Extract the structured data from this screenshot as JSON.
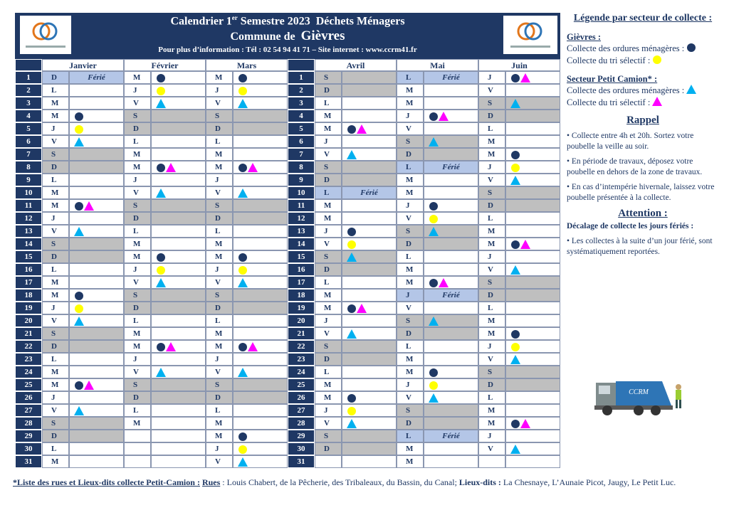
{
  "header": {
    "title_pre": "Calendrier 1",
    "title_sup": "er",
    "title_post": " Semestre 2023  Déchets Ménagers",
    "commune_label": "Commune de",
    "commune": "Gièvres",
    "info": "Pour plus d’information : Tél : 02 54 94 41 71 – Site internet : www.ccrm41.fr"
  },
  "day_numbers": [
    1,
    2,
    3,
    4,
    5,
    6,
    7,
    8,
    9,
    10,
    11,
    12,
    13,
    14,
    15,
    16,
    17,
    18,
    19,
    20,
    21,
    22,
    23,
    24,
    25,
    26,
    27,
    28,
    29,
    30,
    31
  ],
  "months": [
    {
      "name": "Janvier",
      "days": [
        {
          "d": "D",
          "f": "Férié"
        },
        {
          "d": "L"
        },
        {
          "d": "M"
        },
        {
          "d": "M",
          "i": "o"
        },
        {
          "d": "J",
          "i": "y"
        },
        {
          "d": "V",
          "i": "t"
        },
        {
          "d": "S"
        },
        {
          "d": "D"
        },
        {
          "d": "L"
        },
        {
          "d": "M"
        },
        {
          "d": "M",
          "i": "op"
        },
        {
          "d": "J"
        },
        {
          "d": "V",
          "i": "t"
        },
        {
          "d": "S"
        },
        {
          "d": "D"
        },
        {
          "d": "L"
        },
        {
          "d": "M"
        },
        {
          "d": "M",
          "i": "o"
        },
        {
          "d": "J",
          "i": "y"
        },
        {
          "d": "V",
          "i": "t"
        },
        {
          "d": "S"
        },
        {
          "d": "D"
        },
        {
          "d": "L"
        },
        {
          "d": "M"
        },
        {
          "d": "M",
          "i": "op"
        },
        {
          "d": "J"
        },
        {
          "d": "V",
          "i": "t"
        },
        {
          "d": "S"
        },
        {
          "d": "D"
        },
        {
          "d": "L"
        },
        {
          "d": "M"
        }
      ]
    },
    {
      "name": "Février",
      "days": [
        {
          "d": "M",
          "i": "o"
        },
        {
          "d": "J",
          "i": "y"
        },
        {
          "d": "V",
          "i": "t"
        },
        {
          "d": "S"
        },
        {
          "d": "D"
        },
        {
          "d": "L"
        },
        {
          "d": "M"
        },
        {
          "d": "M",
          "i": "op"
        },
        {
          "d": "J"
        },
        {
          "d": "V",
          "i": "t"
        },
        {
          "d": "S"
        },
        {
          "d": "D"
        },
        {
          "d": "L"
        },
        {
          "d": "M"
        },
        {
          "d": "M",
          "i": "o"
        },
        {
          "d": "J",
          "i": "y"
        },
        {
          "d": "V",
          "i": "t"
        },
        {
          "d": "S"
        },
        {
          "d": "D"
        },
        {
          "d": "L"
        },
        {
          "d": "M"
        },
        {
          "d": "M",
          "i": "op"
        },
        {
          "d": "J"
        },
        {
          "d": "V",
          "i": "t"
        },
        {
          "d": "S"
        },
        {
          "d": "D"
        },
        {
          "d": "L"
        },
        {
          "d": "M"
        }
      ]
    },
    {
      "name": "Mars",
      "days": [
        {
          "d": "M",
          "i": "o"
        },
        {
          "d": "J",
          "i": "y"
        },
        {
          "d": "V",
          "i": "t"
        },
        {
          "d": "S"
        },
        {
          "d": "D"
        },
        {
          "d": "L"
        },
        {
          "d": "M"
        },
        {
          "d": "M",
          "i": "op"
        },
        {
          "d": "J"
        },
        {
          "d": "V",
          "i": "t"
        },
        {
          "d": "S"
        },
        {
          "d": "D"
        },
        {
          "d": "L"
        },
        {
          "d": "M"
        },
        {
          "d": "M",
          "i": "o"
        },
        {
          "d": "J",
          "i": "y"
        },
        {
          "d": "V",
          "i": "t"
        },
        {
          "d": "S"
        },
        {
          "d": "D"
        },
        {
          "d": "L"
        },
        {
          "d": "M"
        },
        {
          "d": "M",
          "i": "op"
        },
        {
          "d": "J"
        },
        {
          "d": "V",
          "i": "t"
        },
        {
          "d": "S"
        },
        {
          "d": "D"
        },
        {
          "d": "L"
        },
        {
          "d": "M"
        },
        {
          "d": "M",
          "i": "o"
        },
        {
          "d": "J",
          "i": "y"
        },
        {
          "d": "V",
          "i": "t"
        }
      ]
    },
    {
      "name": "Avril",
      "days": [
        {
          "d": "S"
        },
        {
          "d": "D"
        },
        {
          "d": "L"
        },
        {
          "d": "M"
        },
        {
          "d": "M",
          "i": "op"
        },
        {
          "d": "J"
        },
        {
          "d": "V",
          "i": "t"
        },
        {
          "d": "S"
        },
        {
          "d": "D"
        },
        {
          "d": "L",
          "f": "Férié"
        },
        {
          "d": "M"
        },
        {
          "d": "M"
        },
        {
          "d": "J",
          "i": "o"
        },
        {
          "d": "V",
          "i": "y"
        },
        {
          "d": "S",
          "i": "t"
        },
        {
          "d": "D"
        },
        {
          "d": "L"
        },
        {
          "d": "M"
        },
        {
          "d": "M",
          "i": "op"
        },
        {
          "d": "J"
        },
        {
          "d": "V",
          "i": "t"
        },
        {
          "d": "S"
        },
        {
          "d": "D"
        },
        {
          "d": "L"
        },
        {
          "d": "M"
        },
        {
          "d": "M",
          "i": "o"
        },
        {
          "d": "J",
          "i": "y"
        },
        {
          "d": "V",
          "i": "t"
        },
        {
          "d": "S"
        },
        {
          "d": "D"
        }
      ]
    },
    {
      "name": "Mai",
      "days": [
        {
          "d": "L",
          "f": "Férié"
        },
        {
          "d": "M"
        },
        {
          "d": "M"
        },
        {
          "d": "J",
          "i": "op"
        },
        {
          "d": "V"
        },
        {
          "d": "S",
          "i": "t"
        },
        {
          "d": "D"
        },
        {
          "d": "L",
          "f": "Férié"
        },
        {
          "d": "M"
        },
        {
          "d": "M"
        },
        {
          "d": "J",
          "i": "o"
        },
        {
          "d": "V",
          "i": "y"
        },
        {
          "d": "S",
          "i": "t"
        },
        {
          "d": "D"
        },
        {
          "d": "L"
        },
        {
          "d": "M"
        },
        {
          "d": "M",
          "i": "op"
        },
        {
          "d": "J",
          "f": "Férié"
        },
        {
          "d": "V"
        },
        {
          "d": "S",
          "i": "t"
        },
        {
          "d": "D"
        },
        {
          "d": "L"
        },
        {
          "d": "M"
        },
        {
          "d": "M",
          "i": "o"
        },
        {
          "d": "J",
          "i": "y"
        },
        {
          "d": "V",
          "i": "t"
        },
        {
          "d": "S"
        },
        {
          "d": "D"
        },
        {
          "d": "L",
          "f": "Férié"
        },
        {
          "d": "M"
        },
        {
          "d": "M"
        }
      ]
    },
    {
      "name": "Juin",
      "days": [
        {
          "d": "J",
          "i": "op"
        },
        {
          "d": "V"
        },
        {
          "d": "S",
          "i": "t"
        },
        {
          "d": "D"
        },
        {
          "d": "L"
        },
        {
          "d": "M"
        },
        {
          "d": "M",
          "i": "o"
        },
        {
          "d": "J",
          "i": "y"
        },
        {
          "d": "V",
          "i": "t"
        },
        {
          "d": "S"
        },
        {
          "d": "D"
        },
        {
          "d": "L"
        },
        {
          "d": "M"
        },
        {
          "d": "M",
          "i": "op"
        },
        {
          "d": "J"
        },
        {
          "d": "V",
          "i": "t"
        },
        {
          "d": "S"
        },
        {
          "d": "D"
        },
        {
          "d": "L"
        },
        {
          "d": "M"
        },
        {
          "d": "M",
          "i": "o"
        },
        {
          "d": "J",
          "i": "y"
        },
        {
          "d": "V",
          "i": "t"
        },
        {
          "d": "S"
        },
        {
          "d": "D"
        },
        {
          "d": "L"
        },
        {
          "d": "M"
        },
        {
          "d": "M",
          "i": "op"
        },
        {
          "d": "J"
        },
        {
          "d": "V",
          "i": "t"
        }
      ]
    }
  ],
  "legend": {
    "title": "Légende par secteur de collecte :",
    "sectors": [
      {
        "title": "Gièvres :",
        "items": [
          {
            "text": "Collecte des ordures ménagères :",
            "icon": "o"
          },
          {
            "text": "Collecte du tri sélectif :",
            "icon": "y"
          }
        ]
      },
      {
        "title": "Secteur Petit Camion* :",
        "items": [
          {
            "text": "Collecte des ordures ménagères :",
            "icon": "t"
          },
          {
            "text": "Collecte du tri sélectif :",
            "icon": "p"
          }
        ]
      }
    ]
  },
  "rappel": {
    "title": "Rappel",
    "items": [
      "• Collecte entre 4h et 20h. Sortez votre poubelle la veille au soir.",
      "• En période de travaux, déposez votre poubelle en dehors de la zone de travaux.",
      "• En cas d’intempérie hivernale, laissez votre poubelle présentée à la collecte."
    ]
  },
  "attention": {
    "title": "Attention :",
    "subtitle": "Décalage de collecte les jours fériés :",
    "items": [
      "• Les collectes à la suite d’un jour férié, sont systématiquement reportées."
    ]
  },
  "truck_label": "CCRM",
  "footer": {
    "heading": "*Liste des rues et Lieux-dits collecte Petit-Camion :",
    "rues_label": "Rues",
    "rues": " : Louis Chabert, de la Pêcherie, des Tribaleaux, du Bassin, du Canal; ",
    "lieux_label": "Lieux-dits :",
    "lieux": " La Chesnaye, L’Aunaie Picot, Jaugy, Le Petit Luc."
  }
}
